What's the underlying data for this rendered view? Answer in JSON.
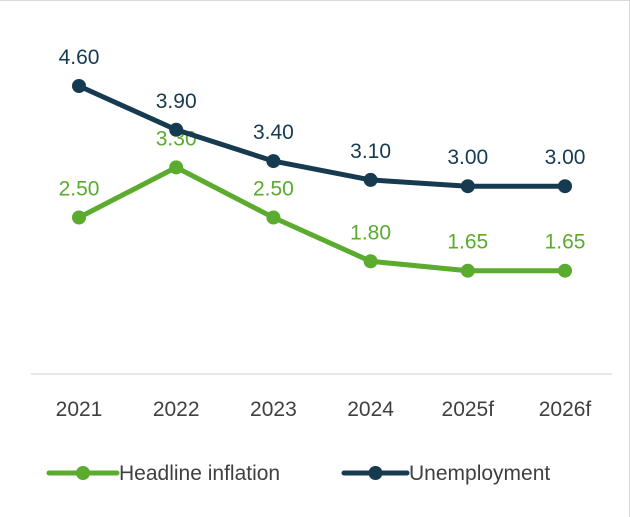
{
  "chart_data": {
    "type": "line",
    "categories": [
      "2021",
      "2022",
      "2023",
      "2024",
      "2025f",
      "2026f"
    ],
    "series": [
      {
        "name": "Headline inflation",
        "values": [
          2.5,
          3.3,
          2.5,
          1.8,
          1.65,
          1.65
        ],
        "labels": [
          "2.50",
          "3.30",
          "2.50",
          "1.80",
          "1.65",
          "1.65"
        ],
        "color": "#5aab2e"
      },
      {
        "name": "Unemployment",
        "values": [
          4.6,
          3.9,
          3.4,
          3.1,
          3.0,
          3.0
        ],
        "labels": [
          "4.60",
          "3.90",
          "3.40",
          "3.10",
          "3.00",
          "3.00"
        ],
        "color": "#163a50"
      }
    ],
    "legend_position": "bottom",
    "grid": false,
    "axis_line_color": "#d9d9d9",
    "tick_label_color": "#404040"
  }
}
